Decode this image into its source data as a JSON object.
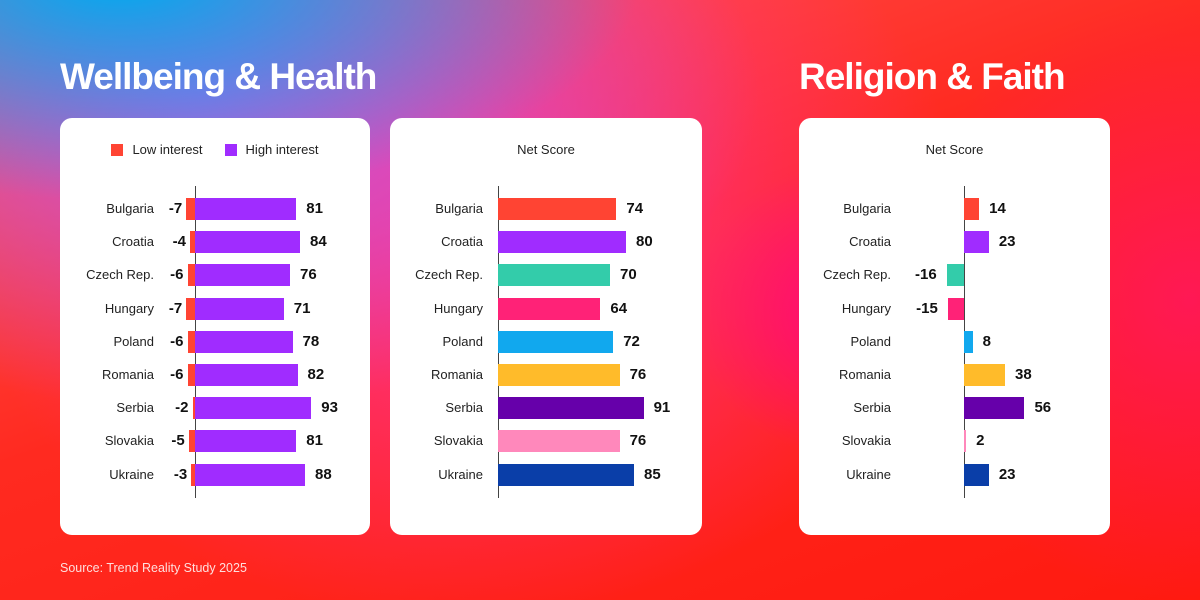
{
  "titles": {
    "left": "Wellbeing & Health",
    "right": "Religion & Faith"
  },
  "source": "Source: Trend Reality Study 2025",
  "colors": {
    "low": "#ff4433",
    "high": "#a02cff",
    "countries": {
      "Bulgaria": "#ff4433",
      "Croatia": "#a02cff",
      "Czech Rep.": "#33ccaa",
      "Hungary": "#ff2277",
      "Poland": "#11a8ee",
      "Romania": "#ffbb2a",
      "Serbia": "#6600aa",
      "Slovakia": "#ff88bb",
      "Ukraine": "#0a3ea8"
    }
  },
  "panels": {
    "wellbeing_interest": {
      "legend": {
        "low": "Low interest",
        "high": "High interest"
      },
      "rows": [
        {
          "country": "Bulgaria",
          "low": "-7",
          "high": "81"
        },
        {
          "country": "Croatia",
          "low": "-4",
          "high": "84"
        },
        {
          "country": "Czech Rep.",
          "low": "-6",
          "high": "76"
        },
        {
          "country": "Hungary",
          "low": "-7",
          "high": "71"
        },
        {
          "country": "Poland",
          "low": "-6",
          "high": "78"
        },
        {
          "country": "Romania",
          "low": "-6",
          "high": "82"
        },
        {
          "country": "Serbia",
          "low": "-2",
          "high": "93"
        },
        {
          "country": "Slovakia",
          "low": "-5",
          "high": "81"
        },
        {
          "country": "Ukraine",
          "low": "-3",
          "high": "88"
        }
      ]
    },
    "wellbeing_net": {
      "header": "Net Score",
      "rows": [
        {
          "country": "Bulgaria",
          "value": "74"
        },
        {
          "country": "Croatia",
          "value": "80"
        },
        {
          "country": "Czech Rep.",
          "value": "70"
        },
        {
          "country": "Hungary",
          "value": "64"
        },
        {
          "country": "Poland",
          "value": "72"
        },
        {
          "country": "Romania",
          "value": "76"
        },
        {
          "country": "Serbia",
          "value": "91"
        },
        {
          "country": "Slovakia",
          "value": "76"
        },
        {
          "country": "Ukraine",
          "value": "85"
        }
      ]
    },
    "religion_net": {
      "header": "Net Score",
      "rows": [
        {
          "country": "Bulgaria",
          "value": "14"
        },
        {
          "country": "Croatia",
          "value": "23"
        },
        {
          "country": "Czech Rep.",
          "value": "-16"
        },
        {
          "country": "Hungary",
          "value": "-15"
        },
        {
          "country": "Poland",
          "value": "8"
        },
        {
          "country": "Romania",
          "value": "38"
        },
        {
          "country": "Serbia",
          "value": "56"
        },
        {
          "country": "Slovakia",
          "value": "2"
        },
        {
          "country": "Ukraine",
          "value": "23"
        }
      ]
    }
  },
  "chart_data": [
    {
      "type": "bar",
      "title": "Wellbeing & Health — Interest",
      "orientation": "horizontal",
      "categories": [
        "Bulgaria",
        "Croatia",
        "Czech Rep.",
        "Hungary",
        "Poland",
        "Romania",
        "Serbia",
        "Slovakia",
        "Ukraine"
      ],
      "series": [
        {
          "name": "Low interest",
          "color": "#ff4433",
          "values": [
            -7,
            -4,
            -6,
            -7,
            -6,
            -6,
            -2,
            -5,
            -3
          ]
        },
        {
          "name": "High interest",
          "color": "#a02cff",
          "values": [
            81,
            84,
            76,
            71,
            78,
            82,
            93,
            81,
            88
          ]
        }
      ],
      "legend_position": "top",
      "grid": false
    },
    {
      "type": "bar",
      "title": "Wellbeing & Health — Net Score",
      "orientation": "horizontal",
      "categories": [
        "Bulgaria",
        "Croatia",
        "Czech Rep.",
        "Hungary",
        "Poland",
        "Romania",
        "Serbia",
        "Slovakia",
        "Ukraine"
      ],
      "values": [
        74,
        80,
        70,
        64,
        72,
        76,
        91,
        76,
        85
      ],
      "grid": false
    },
    {
      "type": "bar",
      "title": "Religion & Faith — Net Score",
      "orientation": "horizontal",
      "categories": [
        "Bulgaria",
        "Croatia",
        "Czech Rep.",
        "Hungary",
        "Poland",
        "Romania",
        "Serbia",
        "Slovakia",
        "Ukraine"
      ],
      "values": [
        14,
        23,
        -16,
        -15,
        8,
        38,
        56,
        2,
        23
      ],
      "grid": false
    }
  ]
}
